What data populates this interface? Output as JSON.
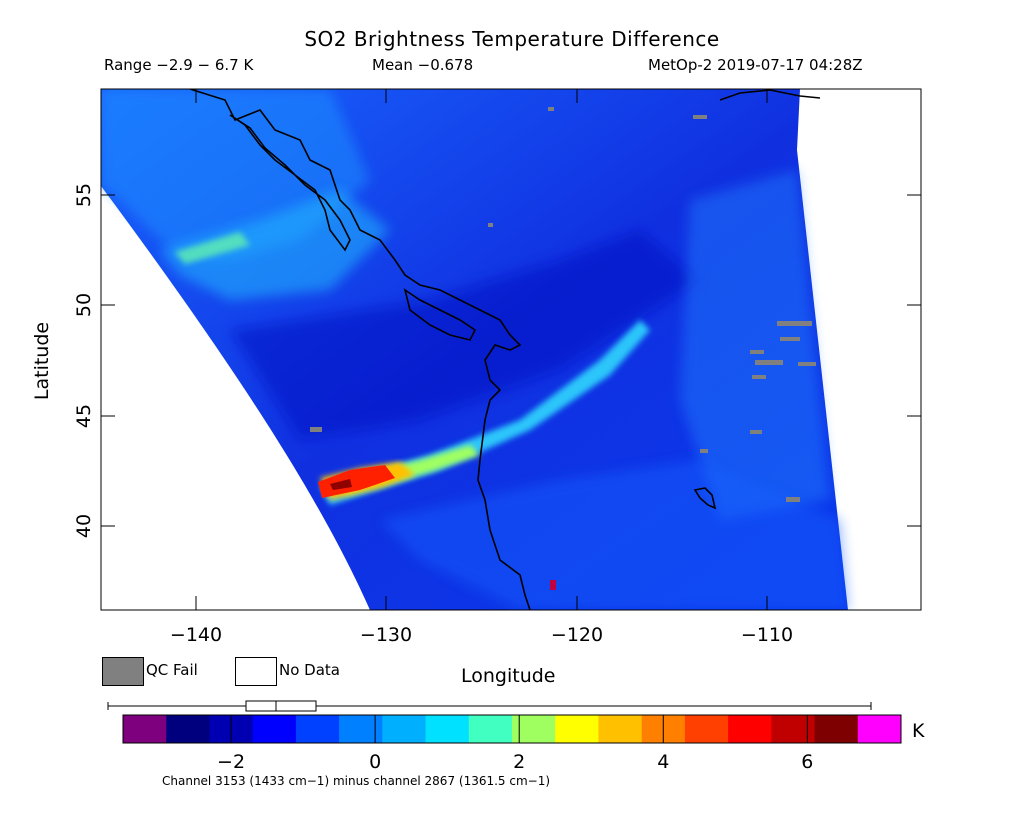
{
  "header": {
    "title": "SO2 Brightness Temperature Difference",
    "range": "Range −2.9 − 6.7 K",
    "mean": "Mean −0.678",
    "satellite_time": "MetOp-2 2019-07-17 04:28Z"
  },
  "map": {
    "x_axis_label": "Longitude",
    "y_axis_label": "Latitude",
    "lon_range": [
      -145,
      -102
    ],
    "lat_range": [
      36,
      60
    ],
    "x_ticks": [
      -140,
      -130,
      -120,
      -110
    ],
    "x_tick_labels": [
      "−140",
      "−130",
      "−120",
      "−110"
    ],
    "y_ticks": [
      40,
      45,
      50,
      55
    ],
    "y_tick_labels": [
      "40",
      "45",
      "50",
      "55"
    ]
  },
  "legend": {
    "qc_fail_label": "QC Fail",
    "qc_fail_color": "#808080",
    "no_data_label": "No Data",
    "no_data_color": "#ffffff"
  },
  "colorbar": {
    "unit": "K",
    "min": -2.9,
    "max": 6.7,
    "tick_values": [
      -2,
      0,
      2,
      4,
      6
    ],
    "tick_labels": [
      "−2",
      "0",
      "2",
      "4",
      "6"
    ],
    "colors": [
      "#7f007f",
      "#00007f",
      "#0000b2",
      "#0000ff",
      "#0040ff",
      "#0080ff",
      "#00b0ff",
      "#00e0ff",
      "#40ffc0",
      "#a0ff60",
      "#ffff00",
      "#ffc000",
      "#ff8000",
      "#ff4000",
      "#ff0000",
      "#c00000",
      "#7f0000",
      "#ff00ff"
    ],
    "box_plot": {
      "min": -2.9,
      "q1": -1.2,
      "median": -0.8,
      "q3": -0.3,
      "max": 6.7
    },
    "footnote": "Channel 3153 (1433 cm−1) minus channel 2867 (1361.5 cm−1)"
  }
}
